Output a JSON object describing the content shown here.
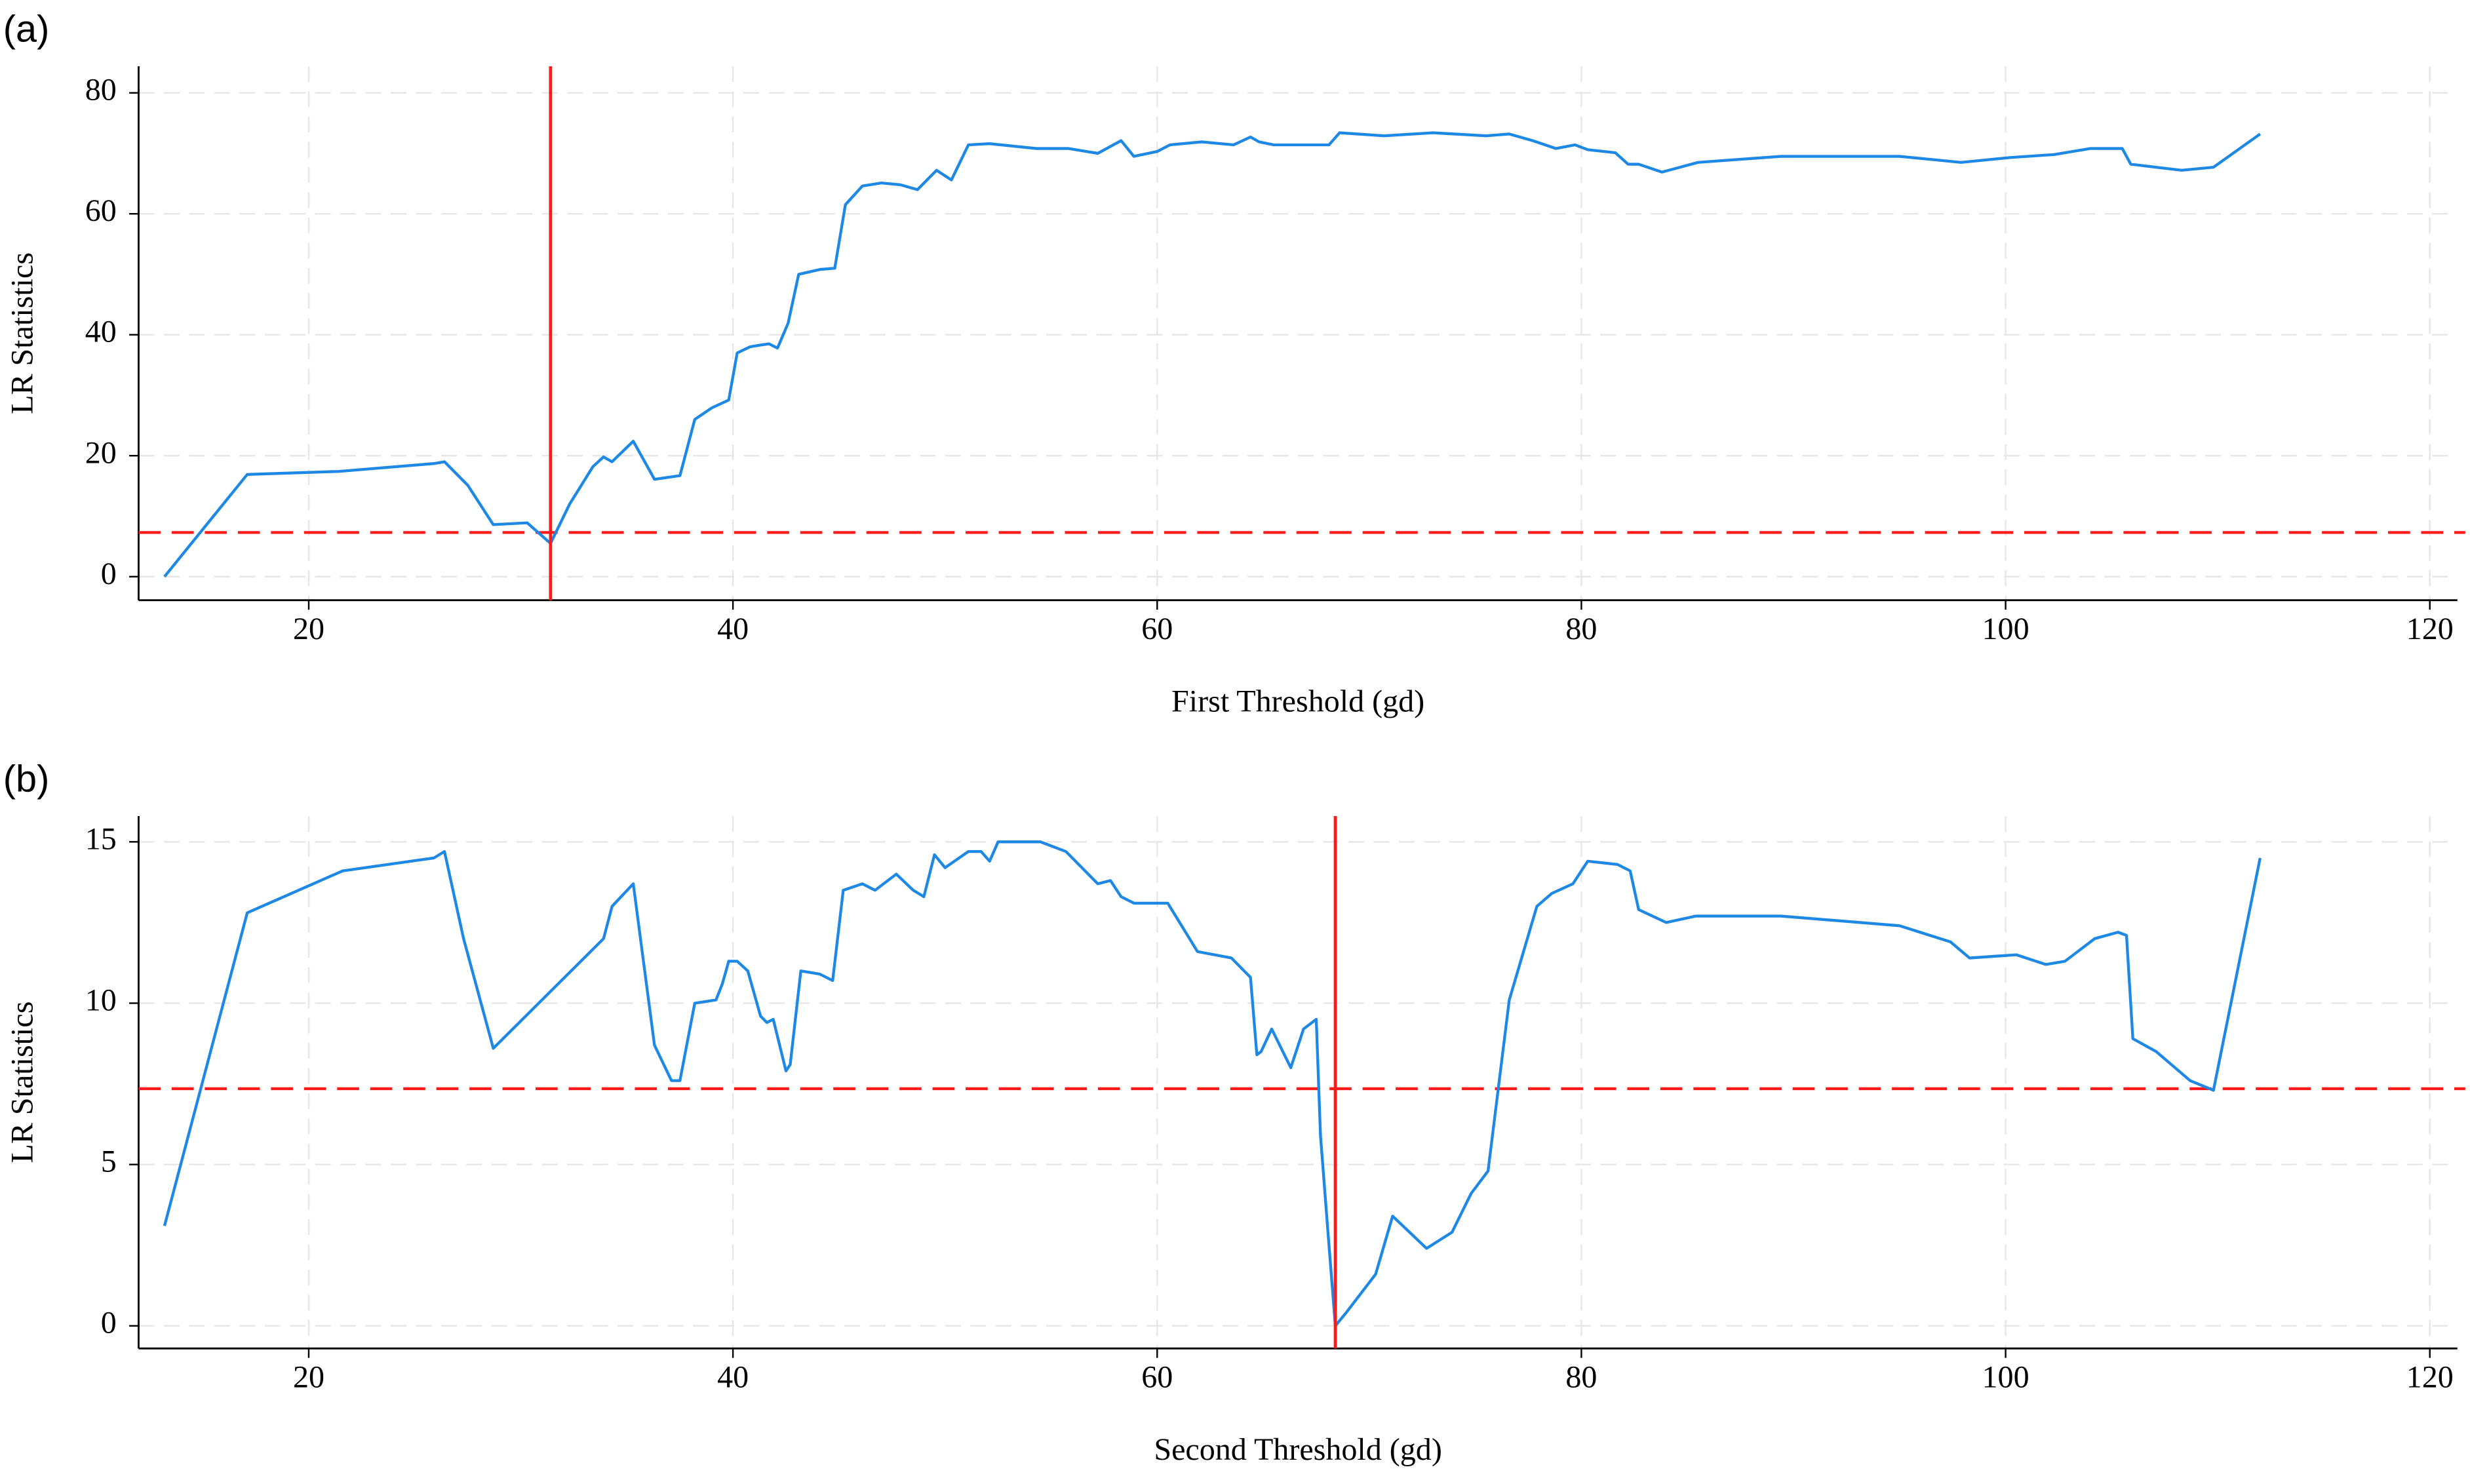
{
  "chart_data": [
    {
      "type": "line",
      "label": "(a)",
      "xlabel": "First Threshold (gd)",
      "ylabel": "LR Statistics",
      "color": "#1e88e5",
      "grid": true,
      "xlim": [
        11.98,
        121.3
      ],
      "xticks": [
        20,
        40,
        60,
        80,
        100,
        120
      ],
      "ylim": [
        -3.9,
        84.4
      ],
      "yticks": [
        0,
        20,
        40,
        60,
        80
      ],
      "vline": 31.4,
      "hline": 7.3,
      "ref_color": "#ff1a1a",
      "x": [
        13.2,
        17.1,
        21.4,
        25.9,
        26.4,
        27.5,
        28.7,
        30.3,
        31.4,
        32.3,
        33.4,
        33.9,
        34.3,
        35.3,
        36.3,
        37.5,
        38.2,
        39,
        39.8,
        40.2,
        40.8,
        41.3,
        41.7,
        42.1,
        42.6,
        43.1,
        44.1,
        44.8,
        45.3,
        46.1,
        47,
        47.9,
        48.7,
        49.6,
        50.3,
        51.1,
        52.1,
        54.3,
        55.8,
        57.2,
        58.3,
        58.9,
        60,
        60.6,
        62.1,
        63.6,
        64.4,
        64.8,
        65.5,
        68.1,
        68.6,
        70.7,
        73,
        75.5,
        76.6,
        77.7,
        78.8,
        79.7,
        80.3,
        81.6,
        82.2,
        82.7,
        83.8,
        85.5,
        89.4,
        95,
        97.9,
        100.2,
        102.3,
        104,
        105.5,
        105.9,
        108.3,
        109.8,
        112
      ],
      "values": [
        0,
        16.9,
        17.4,
        18.7,
        19,
        15.1,
        8.6,
        8.9,
        5.5,
        12,
        18.2,
        19.8,
        19,
        22.4,
        16.1,
        16.7,
        26,
        27.9,
        29.2,
        37,
        38,
        38.3,
        38.5,
        37.8,
        41.9,
        50,
        50.8,
        51,
        61.5,
        64.6,
        65.1,
        64.8,
        64,
        67.2,
        65.6,
        71.4,
        71.6,
        70.8,
        70.8,
        70,
        72.1,
        69.5,
        70.3,
        71.4,
        71.9,
        71.4,
        72.7,
        71.9,
        71.4,
        71.4,
        73.4,
        72.9,
        73.4,
        72.9,
        73.2,
        72.1,
        70.8,
        71.4,
        70.6,
        70.1,
        68.2,
        68.2,
        66.9,
        68.5,
        69.5,
        69.5,
        68.5,
        69.3,
        69.8,
        70.8,
        70.8,
        68.2,
        67.2,
        67.7,
        73.2
      ]
    },
    {
      "type": "line",
      "label": "(b)",
      "xlabel": "Second Threshold (gd)",
      "ylabel": "LR Statistics",
      "color": "#1e88e5",
      "grid": true,
      "xlim": [
        11.98,
        121.3
      ],
      "xticks": [
        20,
        40,
        60,
        80,
        100,
        120
      ],
      "ylim": [
        -0.7,
        15.8
      ],
      "yticks": [
        0,
        5,
        10,
        15
      ],
      "vline": 68.4,
      "hline": 7.35,
      "ref_color": "#ff1a1a",
      "x": [
        13.2,
        17.1,
        21.6,
        25.9,
        26.4,
        27.3,
        28.7,
        33.9,
        34.3,
        35.3,
        36.3,
        37.1,
        37.5,
        38.2,
        39.2,
        39.5,
        39.8,
        40.2,
        40.7,
        41.3,
        41.6,
        41.9,
        42.5,
        42.7,
        43.2,
        44.1,
        44.7,
        45.2,
        46.1,
        46.7,
        47.7,
        48.5,
        49,
        49.5,
        50,
        51.1,
        51.7,
        52.1,
        52.5,
        54.5,
        55.7,
        57.2,
        57.8,
        58.3,
        58.9,
        60.5,
        61.9,
        63.5,
        64.4,
        64.7,
        64.9,
        65.4,
        66.3,
        66.9,
        67.5,
        67.7,
        68.1,
        68.4,
        68.9,
        70.3,
        71.1,
        72.7,
        73.9,
        74.8,
        75.6,
        76.6,
        77.9,
        78.6,
        79.6,
        80.3,
        81.7,
        82.3,
        82.7,
        84,
        85.4,
        89.4,
        95,
        97.4,
        98.3,
        100.5,
        101.9,
        102.8,
        104.2,
        105.3,
        105.7,
        106,
        107.1,
        108.7,
        109.8,
        112
      ],
      "values": [
        3.1,
        12.8,
        14.1,
        14.5,
        14.7,
        12,
        8.6,
        12,
        13,
        13.7,
        8.7,
        7.6,
        7.6,
        10,
        10.1,
        10.6,
        11.3,
        11.3,
        11,
        9.6,
        9.4,
        9.5,
        7.9,
        8.1,
        11,
        10.9,
        10.7,
        13.5,
        13.7,
        13.5,
        14,
        13.5,
        13.3,
        14.6,
        14.2,
        14.7,
        14.7,
        14.4,
        15,
        15,
        14.7,
        13.7,
        13.8,
        13.3,
        13.1,
        13.1,
        11.6,
        11.4,
        10.8,
        8.4,
        8.5,
        9.2,
        8,
        9.2,
        9.5,
        5.9,
        2.5,
        0,
        0.4,
        1.6,
        3.4,
        2.4,
        2.9,
        4.1,
        4.8,
        10.1,
        13,
        13.4,
        13.7,
        14.4,
        14.3,
        14.1,
        12.9,
        12.5,
        12.7,
        12.7,
        12.4,
        11.9,
        11.4,
        11.5,
        11.2,
        11.3,
        12,
        12.2,
        12.1,
        8.9,
        8.5,
        7.6,
        7.3,
        14.5
      ]
    }
  ]
}
